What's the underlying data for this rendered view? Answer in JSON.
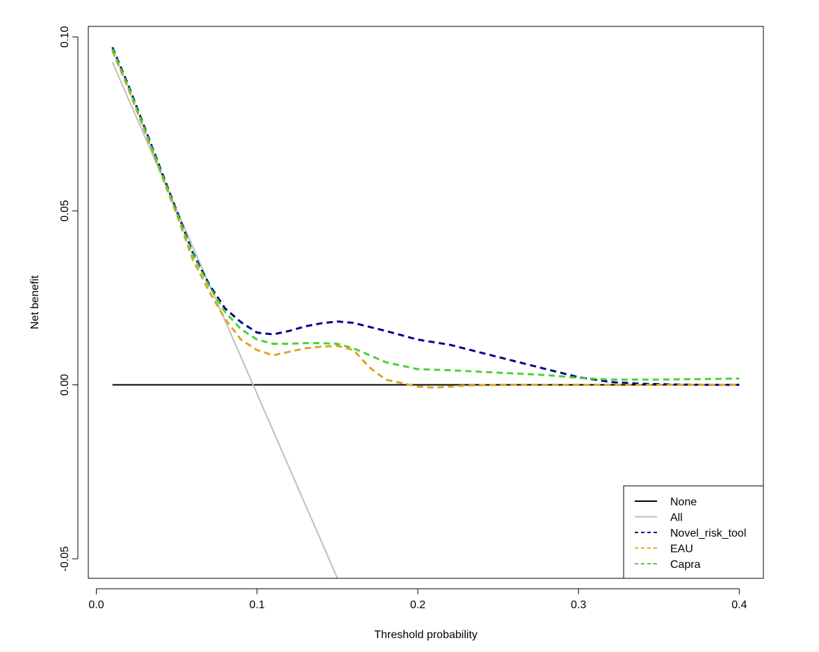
{
  "chart_data": {
    "type": "line",
    "title": "",
    "xlabel": "Threshold probability",
    "ylabel": "Net benefit",
    "xlim": [
      -0.005,
      0.415
    ],
    "ylim": [
      -0.0556,
      0.103
    ],
    "xticks": [
      0.0,
      0.1,
      0.2,
      0.3,
      0.4
    ],
    "xtick_labels": [
      "0.0",
      "0.1",
      "0.2",
      "0.3",
      "0.4"
    ],
    "yticks": [
      -0.05,
      0.0,
      0.05,
      0.1
    ],
    "ytick_labels": [
      "-0.05",
      "0.00",
      "0.05",
      "0.10"
    ],
    "grid": false,
    "legend_position": "bottom-right",
    "series": [
      {
        "name": "None",
        "color": "#000000",
        "dash": "solid",
        "x": [
          0.01,
          0.4
        ],
        "y": [
          0.0,
          0.0
        ]
      },
      {
        "name": "All",
        "color": "#bebebe",
        "dash": "solid",
        "x": [
          0.01,
          0.15
        ],
        "y": [
          0.0927,
          -0.0556
        ]
      },
      {
        "name": "Novel_risk_tool",
        "color": "#00008b",
        "dash": "dashed",
        "x": [
          0.01,
          0.02,
          0.03,
          0.04,
          0.05,
          0.06,
          0.07,
          0.08,
          0.09,
          0.1,
          0.11,
          0.12,
          0.13,
          0.14,
          0.15,
          0.16,
          0.18,
          0.2,
          0.22,
          0.25,
          0.28,
          0.3,
          0.32,
          0.34,
          0.36,
          0.38,
          0.4
        ],
        "y": [
          0.097,
          0.086,
          0.074,
          0.062,
          0.05,
          0.038,
          0.029,
          0.022,
          0.018,
          0.015,
          0.0145,
          0.0155,
          0.0168,
          0.0177,
          0.0182,
          0.0178,
          0.0155,
          0.013,
          0.0115,
          0.008,
          0.0045,
          0.0022,
          0.0008,
          0.0003,
          0.0001,
          0.0,
          0.0
        ]
      },
      {
        "name": "EAU",
        "color": "#daa520",
        "dash": "dashed",
        "x": [
          0.01,
          0.02,
          0.03,
          0.04,
          0.05,
          0.06,
          0.07,
          0.08,
          0.09,
          0.1,
          0.11,
          0.12,
          0.13,
          0.14,
          0.15,
          0.16,
          0.17,
          0.18,
          0.19,
          0.2,
          0.21,
          0.23,
          0.25,
          0.3,
          0.35,
          0.4
        ],
        "y": [
          0.096,
          0.085,
          0.073,
          0.061,
          0.049,
          0.036,
          0.027,
          0.019,
          0.013,
          0.01,
          0.0085,
          0.0095,
          0.0105,
          0.011,
          0.0112,
          0.01,
          0.005,
          0.0015,
          0.0005,
          -0.0005,
          -0.0008,
          -0.0002,
          0.0,
          0.0,
          0.0,
          0.0
        ]
      },
      {
        "name": "Capra",
        "color": "#4dd132",
        "dash": "dashed",
        "x": [
          0.01,
          0.02,
          0.03,
          0.04,
          0.05,
          0.06,
          0.07,
          0.08,
          0.09,
          0.1,
          0.11,
          0.12,
          0.13,
          0.14,
          0.15,
          0.16,
          0.18,
          0.2,
          0.22,
          0.25,
          0.28,
          0.3,
          0.32,
          0.35,
          0.4
        ],
        "y": [
          0.0965,
          0.0855,
          0.0735,
          0.0615,
          0.0495,
          0.0375,
          0.0285,
          0.021,
          0.016,
          0.013,
          0.0118,
          0.0118,
          0.012,
          0.012,
          0.0118,
          0.0105,
          0.0065,
          0.0045,
          0.0042,
          0.0035,
          0.0028,
          0.002,
          0.0015,
          0.0015,
          0.0018
        ]
      }
    ]
  }
}
